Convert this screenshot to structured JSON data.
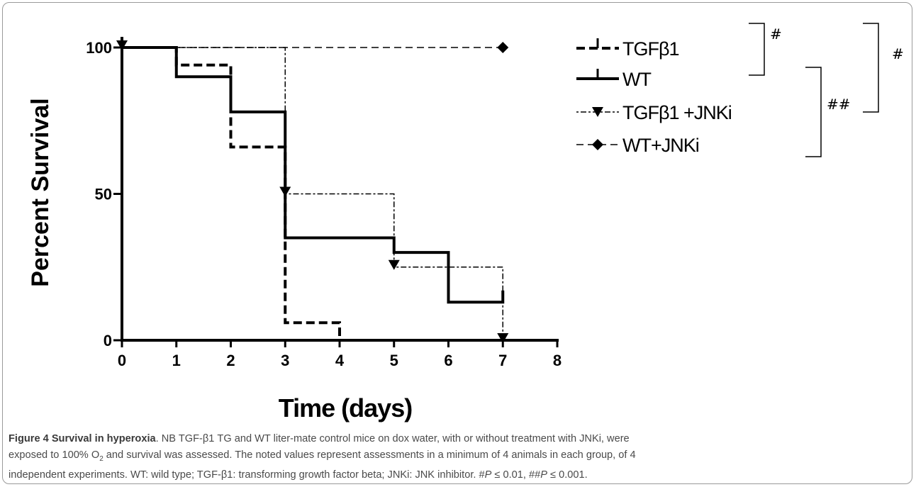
{
  "chart_data": {
    "type": "line",
    "subtype": "kaplan-meier step survival curve",
    "xlabel": "Time (days)",
    "ylabel": "Percent Survival",
    "xlim": [
      0,
      8
    ],
    "ylim": [
      0,
      100
    ],
    "x_ticks": [
      "0",
      "1",
      "2",
      "3",
      "4",
      "5",
      "6",
      "7",
      "8"
    ],
    "y_ticks": [
      "0",
      "50",
      "100"
    ],
    "legend_position": "top-right",
    "series": [
      {
        "name": "TGFβ1",
        "style": "dashed",
        "marker": "censor-tick",
        "points": [
          [
            0,
            100
          ],
          [
            1,
            100
          ],
          [
            1,
            94
          ],
          [
            2,
            94
          ],
          [
            2,
            66
          ],
          [
            3,
            66
          ],
          [
            3,
            6
          ],
          [
            4,
            6
          ],
          [
            4,
            0
          ]
        ]
      },
      {
        "name": "WT",
        "style": "solid",
        "marker": "censor-tick",
        "points": [
          [
            0,
            100
          ],
          [
            1,
            100
          ],
          [
            1,
            90
          ],
          [
            2,
            90
          ],
          [
            2,
            78
          ],
          [
            3,
            78
          ],
          [
            3,
            35
          ],
          [
            5,
            35
          ],
          [
            5,
            30
          ],
          [
            6,
            30
          ],
          [
            6,
            13
          ],
          [
            7,
            13
          ],
          [
            7,
            17
          ]
        ]
      },
      {
        "name": "TGFβ1 +JNKi",
        "style": "dotted",
        "marker": "triangle-down",
        "points": [
          [
            0,
            100
          ],
          [
            3,
            100
          ],
          [
            3,
            50
          ],
          [
            5,
            50
          ],
          [
            5,
            25
          ],
          [
            7,
            25
          ],
          [
            7,
            0
          ]
        ],
        "marker_points": [
          [
            0,
            100
          ],
          [
            3,
            50
          ],
          [
            5,
            25
          ],
          [
            7,
            0
          ]
        ]
      },
      {
        "name": "WT+JNKi",
        "style": "dashed",
        "marker": "diamond",
        "points": [
          [
            0,
            100
          ],
          [
            7,
            100
          ]
        ],
        "marker_points": [
          [
            7,
            100
          ]
        ]
      }
    ],
    "significance": [
      {
        "label": "#",
        "groups": [
          "TGFβ1",
          "WT"
        ]
      },
      {
        "label": "##",
        "groups": [
          "WT",
          "TGFβ1 +JNKi",
          "WT+JNKi"
        ]
      },
      {
        "label": "#",
        "groups": [
          "TGFβ1",
          "WT",
          "TGFβ1 +JNKi"
        ]
      }
    ]
  },
  "caption": {
    "figure_label": "Figure 4 Survival in hyperoxia",
    "lines": [
      {
        "pre": "NB TGF-β1 TG and WT liter-mate control mice on dox water, with or without treatment with JNKi, were"
      },
      {
        "pre": "exposed to 100% O",
        "sub": "2",
        "post": " and survival was assessed. The noted values represent assessments in a minimum of 4 animals in each group, of 4"
      },
      {
        "pre": "independent experiments. WT: wild type; TGF-β1: transforming growth factor beta; JNKi: JNK inhibitor. #",
        "i1": "P",
        "mid": " ≤ 0.01, ##",
        "i2": "P",
        "post": " ≤ 0.001."
      }
    ]
  }
}
